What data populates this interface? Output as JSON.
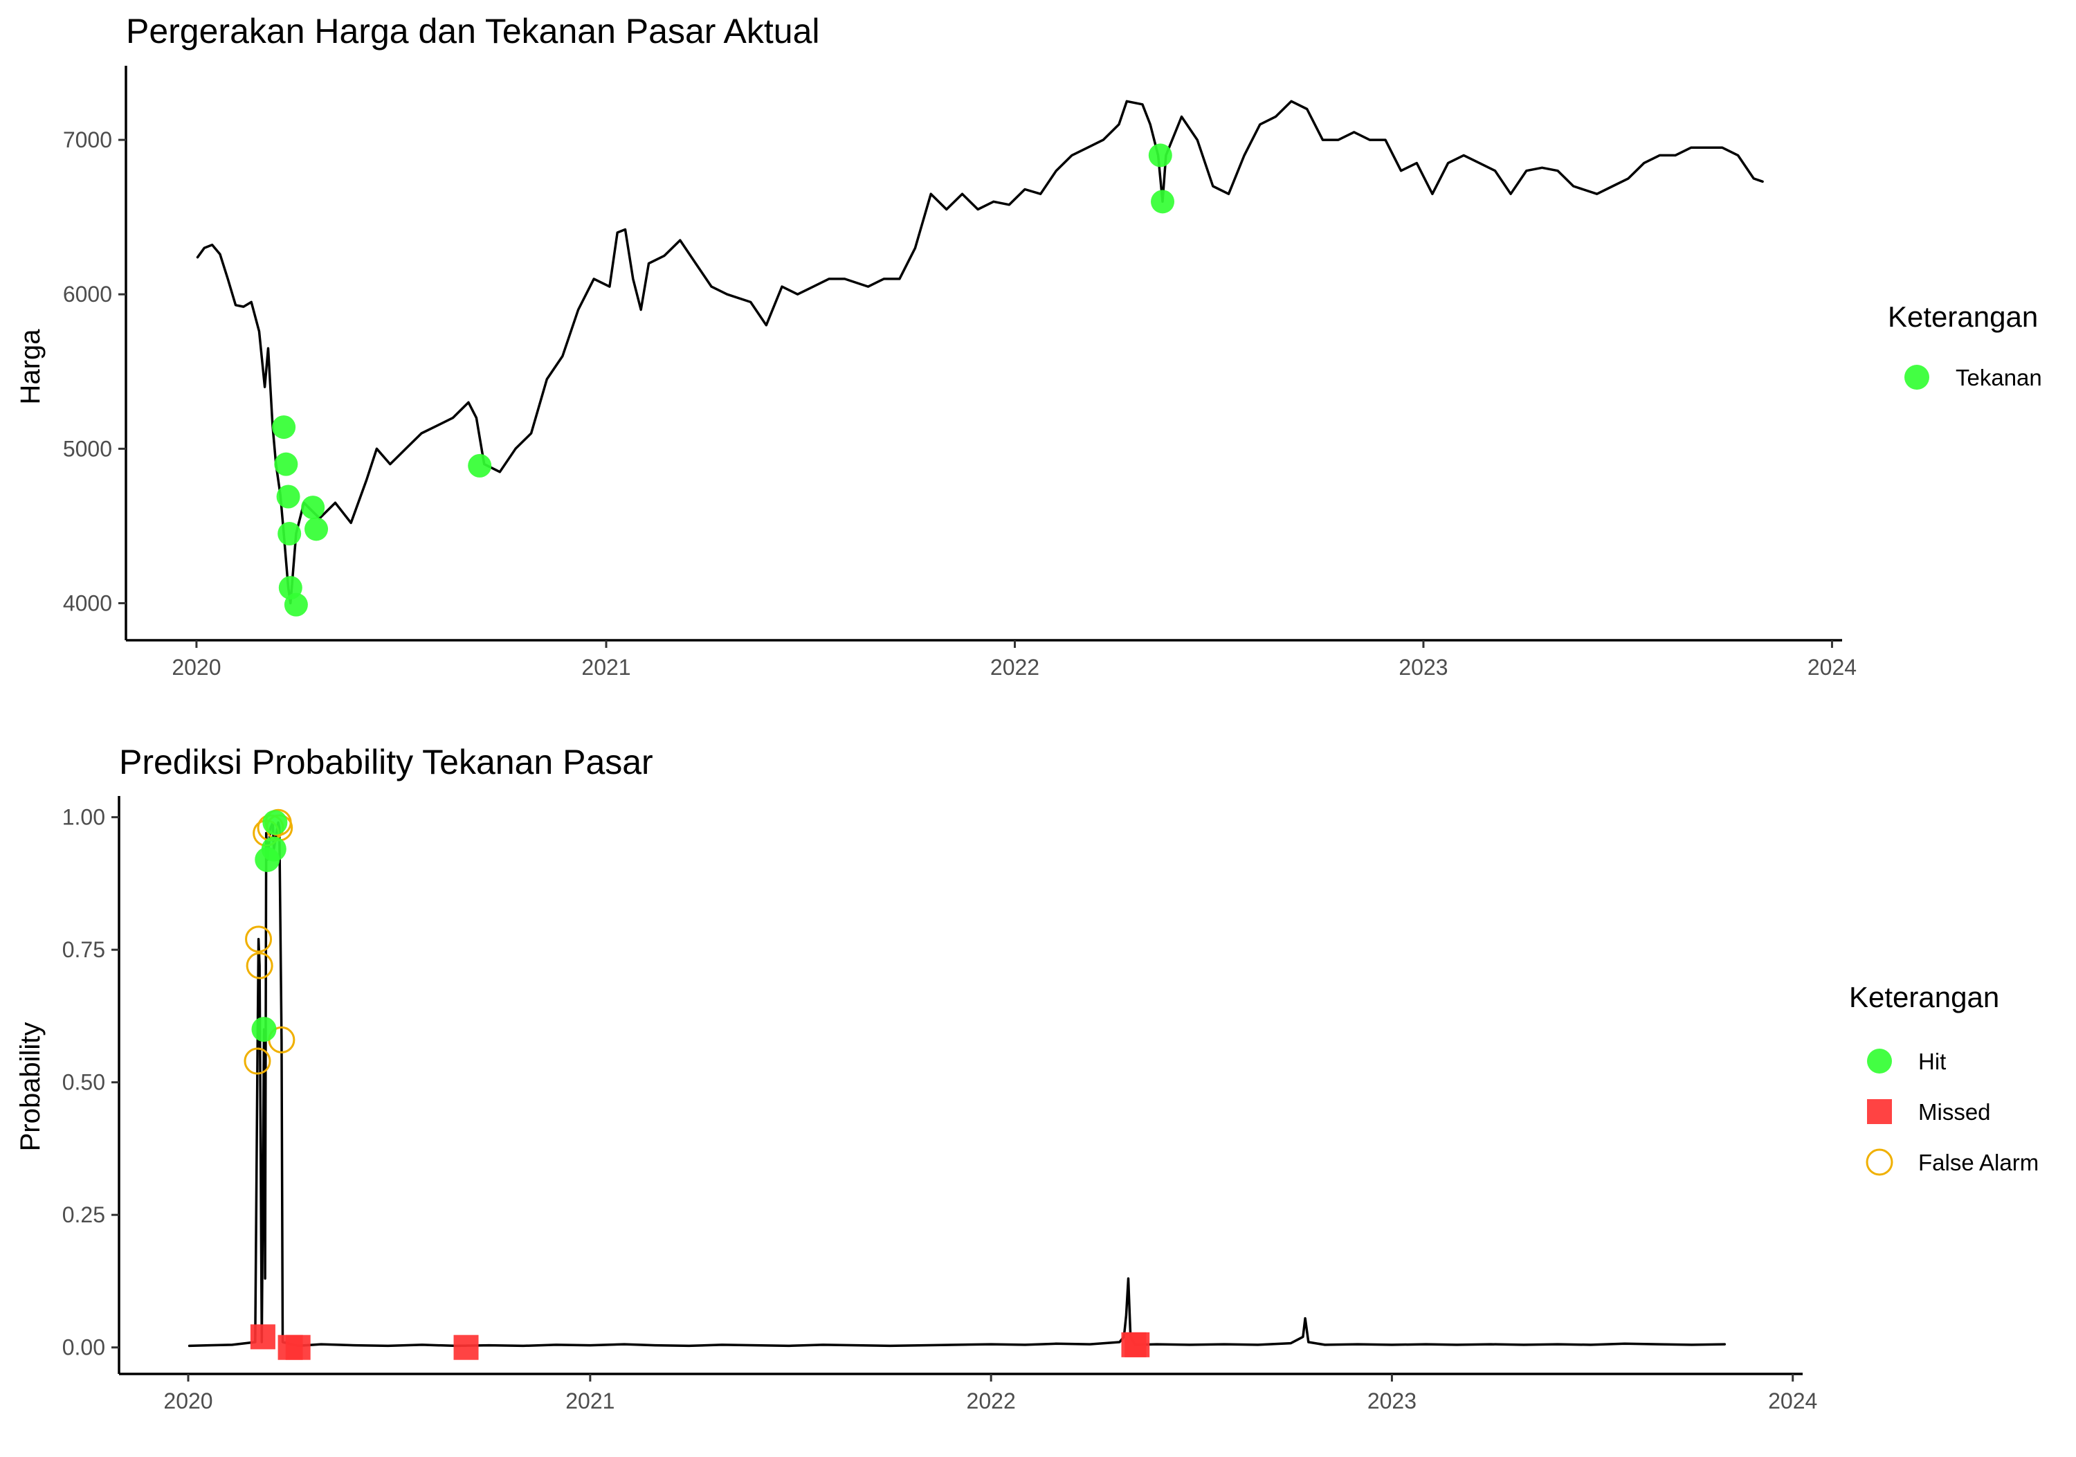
{
  "colors": {
    "line": "#000000",
    "hit": "#33ff33",
    "missed": "#ff3333",
    "false_alarm": "#f0b000",
    "tick_text": "#4d4d4d"
  },
  "chart_data": [
    {
      "type": "line",
      "title": "Pergerakan Harga dan Tekanan Pasar Aktual",
      "xlabel": "",
      "ylabel": "Harga",
      "x_axis_type": "date",
      "xlim": [
        "2019-10-30",
        "2024-01-10"
      ],
      "ylim": [
        3760,
        7480
      ],
      "x_ticks": [
        "2020-01-01",
        "2021-01-01",
        "2022-01-01",
        "2023-01-01",
        "2024-01-01"
      ],
      "x_tick_labels": [
        "2020",
        "2021",
        "2022",
        "2023",
        "2024"
      ],
      "y_ticks": [
        4000,
        5000,
        6000,
        7000
      ],
      "y_tick_labels": [
        "4000",
        "5000",
        "6000",
        "7000"
      ],
      "grid": false,
      "legend_title": "Keterangan",
      "legend_entries": [
        {
          "label": "Tekanan",
          "shape": "circle-filled",
          "color": "#33ff33"
        }
      ],
      "series": [
        {
          "values": [
            [
              "2020-01-02",
              6240
            ],
            [
              "2020-01-08",
              6300
            ],
            [
              "2020-01-15",
              6320
            ],
            [
              "2020-01-22",
              6260
            ],
            [
              "2020-01-29",
              6100
            ],
            [
              "2020-02-05",
              5930
            ],
            [
              "2020-02-12",
              5920
            ],
            [
              "2020-02-19",
              5950
            ],
            [
              "2020-02-26",
              5760
            ],
            [
              "2020-03-02",
              5400
            ],
            [
              "2020-03-05",
              5650
            ],
            [
              "2020-03-09",
              5150
            ],
            [
              "2020-03-12",
              4900
            ],
            [
              "2020-03-16",
              4700
            ],
            [
              "2020-03-19",
              4450
            ],
            [
              "2020-03-23",
              4100
            ],
            [
              "2020-03-25",
              4000
            ],
            [
              "2020-03-30",
              4450
            ],
            [
              "2020-04-06",
              4650
            ],
            [
              "2020-04-13",
              4600
            ],
            [
              "2020-04-20",
              4550
            ],
            [
              "2020-05-04",
              4650
            ],
            [
              "2020-05-18",
              4520
            ],
            [
              "2020-06-01",
              4800
            ],
            [
              "2020-06-10",
              5000
            ],
            [
              "2020-06-22",
              4900
            ],
            [
              "2020-07-06",
              5000
            ],
            [
              "2020-07-20",
              5100
            ],
            [
              "2020-08-03",
              5150
            ],
            [
              "2020-08-17",
              5200
            ],
            [
              "2020-08-31",
              5300
            ],
            [
              "2020-09-07",
              5200
            ],
            [
              "2020-09-14",
              4900
            ],
            [
              "2020-09-28",
              4850
            ],
            [
              "2020-10-12",
              5000
            ],
            [
              "2020-10-26",
              5100
            ],
            [
              "2020-11-09",
              5450
            ],
            [
              "2020-11-23",
              5600
            ],
            [
              "2020-12-07",
              5900
            ],
            [
              "2020-12-21",
              6100
            ],
            [
              "2021-01-04",
              6050
            ],
            [
              "2021-01-11",
              6400
            ],
            [
              "2021-01-18",
              6420
            ],
            [
              "2021-01-25",
              6100
            ],
            [
              "2021-02-01",
              5900
            ],
            [
              "2021-02-08",
              6200
            ],
            [
              "2021-02-22",
              6250
            ],
            [
              "2021-03-08",
              6350
            ],
            [
              "2021-03-22",
              6200
            ],
            [
              "2021-04-05",
              6050
            ],
            [
              "2021-04-19",
              6000
            ],
            [
              "2021-05-10",
              5950
            ],
            [
              "2021-05-24",
              5800
            ],
            [
              "2021-06-07",
              6050
            ],
            [
              "2021-06-21",
              6000
            ],
            [
              "2021-07-05",
              6050
            ],
            [
              "2021-07-19",
              6100
            ],
            [
              "2021-08-02",
              6100
            ],
            [
              "2021-08-23",
              6050
            ],
            [
              "2021-09-06",
              6100
            ],
            [
              "2021-09-20",
              6100
            ],
            [
              "2021-10-04",
              6300
            ],
            [
              "2021-10-18",
              6650
            ],
            [
              "2021-11-01",
              6550
            ],
            [
              "2021-11-15",
              6650
            ],
            [
              "2021-11-29",
              6550
            ],
            [
              "2021-12-13",
              6600
            ],
            [
              "2021-12-27",
              6580
            ],
            [
              "2022-01-10",
              6680
            ],
            [
              "2022-01-24",
              6650
            ],
            [
              "2022-02-07",
              6800
            ],
            [
              "2022-02-21",
              6900
            ],
            [
              "2022-03-07",
              6950
            ],
            [
              "2022-03-21",
              7000
            ],
            [
              "2022-04-04",
              7100
            ],
            [
              "2022-04-11",
              7250
            ],
            [
              "2022-04-25",
              7230
            ],
            [
              "2022-05-02",
              7100
            ],
            [
              "2022-05-09",
              6900
            ],
            [
              "2022-05-13",
              6600
            ],
            [
              "2022-05-16",
              6900
            ],
            [
              "2022-05-30",
              7150
            ],
            [
              "2022-06-13",
              7000
            ],
            [
              "2022-06-27",
              6700
            ],
            [
              "2022-07-11",
              6650
            ],
            [
              "2022-07-25",
              6900
            ],
            [
              "2022-08-08",
              7100
            ],
            [
              "2022-08-22",
              7150
            ],
            [
              "2022-09-05",
              7250
            ],
            [
              "2022-09-19",
              7200
            ],
            [
              "2022-10-03",
              7000
            ],
            [
              "2022-10-17",
              7000
            ],
            [
              "2022-10-31",
              7050
            ],
            [
              "2022-11-14",
              7000
            ],
            [
              "2022-11-28",
              7000
            ],
            [
              "2022-12-12",
              6800
            ],
            [
              "2022-12-26",
              6850
            ],
            [
              "2023-01-09",
              6650
            ],
            [
              "2023-01-23",
              6850
            ],
            [
              "2023-02-06",
              6900
            ],
            [
              "2023-02-20",
              6850
            ],
            [
              "2023-03-06",
              6800
            ],
            [
              "2023-03-20",
              6650
            ],
            [
              "2023-04-03",
              6800
            ],
            [
              "2023-04-17",
              6820
            ],
            [
              "2023-05-01",
              6800
            ],
            [
              "2023-05-15",
              6700
            ],
            [
              "2023-06-05",
              6650
            ],
            [
              "2023-06-19",
              6700
            ],
            [
              "2023-07-03",
              6750
            ],
            [
              "2023-07-17",
              6850
            ],
            [
              "2023-07-31",
              6900
            ],
            [
              "2023-08-14",
              6900
            ],
            [
              "2023-08-28",
              6950
            ],
            [
              "2023-09-11",
              6950
            ],
            [
              "2023-09-25",
              6950
            ],
            [
              "2023-10-09",
              6900
            ],
            [
              "2023-10-23",
              6750
            ],
            [
              "2023-10-31",
              6730
            ]
          ]
        }
      ],
      "points": [
        {
          "x": "2020-03-19",
          "y": 5140,
          "status": "Tekanan"
        },
        {
          "x": "2020-03-21",
          "y": 4900,
          "status": "Tekanan"
        },
        {
          "x": "2020-03-23",
          "y": 4690,
          "status": "Tekanan"
        },
        {
          "x": "2020-03-24",
          "y": 4450,
          "status": "Tekanan"
        },
        {
          "x": "2020-03-25",
          "y": 4100,
          "status": "Tekanan"
        },
        {
          "x": "2020-03-30",
          "y": 3990,
          "status": "Tekanan"
        },
        {
          "x": "2020-04-14",
          "y": 4620,
          "status": "Tekanan"
        },
        {
          "x": "2020-04-17",
          "y": 4480,
          "status": "Tekanan"
        },
        {
          "x": "2020-09-10",
          "y": 4890,
          "status": "Tekanan"
        },
        {
          "x": "2022-05-11",
          "y": 6900,
          "status": "Tekanan"
        },
        {
          "x": "2022-05-13",
          "y": 6600,
          "status": "Tekanan"
        }
      ]
    },
    {
      "type": "line",
      "title": "Prediksi Probability Tekanan Pasar",
      "xlabel": "",
      "ylabel": "Probability",
      "x_axis_type": "date",
      "xlim": [
        "2019-10-30",
        "2024-01-10"
      ],
      "ylim": [
        -0.05,
        1.04
      ],
      "x_ticks": [
        "2020-01-01",
        "2021-01-01",
        "2022-01-01",
        "2023-01-01",
        "2024-01-01"
      ],
      "x_tick_labels": [
        "2020",
        "2021",
        "2022",
        "2023",
        "2024"
      ],
      "y_ticks": [
        0,
        0.25,
        0.5,
        0.75,
        1.0
      ],
      "y_tick_labels": [
        "0.00",
        "0.25",
        "0.50",
        "0.75",
        "1.00"
      ],
      "grid": false,
      "legend_title": "Keterangan",
      "legend_entries": [
        {
          "label": "Hit",
          "shape": "circle-filled",
          "color": "#33ff33"
        },
        {
          "label": "Missed",
          "shape": "square-filled",
          "color": "#ff3333"
        },
        {
          "label": "False Alarm",
          "shape": "circle-open",
          "color": "#f0b000"
        }
      ],
      "series": [
        {
          "values": [
            [
              "2020-01-02",
              0.003
            ],
            [
              "2020-01-20",
              0.004
            ],
            [
              "2020-02-10",
              0.005
            ],
            [
              "2020-03-02",
              0.01
            ],
            [
              "2020-03-04",
              0.54
            ],
            [
              "2020-03-05",
              0.77
            ],
            [
              "2020-03-06",
              0.72
            ],
            [
              "2020-03-08",
              0.01
            ],
            [
              "2020-03-10",
              0.6
            ],
            [
              "2020-03-11",
              0.13
            ],
            [
              "2020-03-12",
              0.97
            ],
            [
              "2020-03-13",
              0.92
            ],
            [
              "2020-03-16",
              0.98
            ],
            [
              "2020-03-18",
              0.99
            ],
            [
              "2020-03-19",
              0.94
            ],
            [
              "2020-03-23",
              0.99
            ],
            [
              "2020-03-24",
              0.98
            ],
            [
              "2020-03-26",
              0.58
            ],
            [
              "2020-03-27",
              0.01
            ],
            [
              "2020-04-10",
              0.003
            ],
            [
              "2020-05-01",
              0.006
            ],
            [
              "2020-06-01",
              0.004
            ],
            [
              "2020-07-01",
              0.003
            ],
            [
              "2020-08-01",
              0.005
            ],
            [
              "2020-09-01",
              0.003
            ],
            [
              "2020-10-01",
              0.004
            ],
            [
              "2020-11-01",
              0.003
            ],
            [
              "2020-12-01",
              0.005
            ],
            [
              "2021-01-01",
              0.004
            ],
            [
              "2021-02-01",
              0.006
            ],
            [
              "2021-03-01",
              0.004
            ],
            [
              "2021-04-01",
              0.003
            ],
            [
              "2021-05-01",
              0.005
            ],
            [
              "2021-06-01",
              0.004
            ],
            [
              "2021-07-01",
              0.003
            ],
            [
              "2021-08-01",
              0.005
            ],
            [
              "2021-09-01",
              0.004
            ],
            [
              "2021-10-01",
              0.003
            ],
            [
              "2021-11-01",
              0.004
            ],
            [
              "2021-12-01",
              0.005
            ],
            [
              "2022-01-01",
              0.006
            ],
            [
              "2022-02-01",
              0.005
            ],
            [
              "2022-03-01",
              0.007
            ],
            [
              "2022-04-01",
              0.006
            ],
            [
              "2022-04-28",
              0.01
            ],
            [
              "2022-05-02",
              0.02
            ],
            [
              "2022-05-04",
              0.06
            ],
            [
              "2022-05-06",
              0.13
            ],
            [
              "2022-05-08",
              0.02
            ],
            [
              "2022-05-12",
              0.005
            ],
            [
              "2022-06-01",
              0.006
            ],
            [
              "2022-07-01",
              0.005
            ],
            [
              "2022-08-01",
              0.006
            ],
            [
              "2022-09-01",
              0.005
            ],
            [
              "2022-10-01",
              0.008
            ],
            [
              "2022-10-12",
              0.02
            ],
            [
              "2022-10-14",
              0.055
            ],
            [
              "2022-10-17",
              0.01
            ],
            [
              "2022-11-01",
              0.005
            ],
            [
              "2022-12-01",
              0.006
            ],
            [
              "2023-01-01",
              0.005
            ],
            [
              "2023-02-01",
              0.006
            ],
            [
              "2023-03-01",
              0.005
            ],
            [
              "2023-04-01",
              0.006
            ],
            [
              "2023-05-01",
              0.005
            ],
            [
              "2023-06-01",
              0.006
            ],
            [
              "2023-07-01",
              0.005
            ],
            [
              "2023-08-01",
              0.007
            ],
            [
              "2023-09-01",
              0.006
            ],
            [
              "2023-10-01",
              0.005
            ],
            [
              "2023-10-31",
              0.006
            ]
          ]
        }
      ],
      "points": [
        {
          "x": "2020-03-04",
          "y": 0.54,
          "status": "False Alarm"
        },
        {
          "x": "2020-03-05",
          "y": 0.77,
          "status": "False Alarm"
        },
        {
          "x": "2020-03-06",
          "y": 0.72,
          "status": "False Alarm"
        },
        {
          "x": "2020-03-12",
          "y": 0.97,
          "status": "False Alarm"
        },
        {
          "x": "2020-03-16",
          "y": 0.98,
          "status": "False Alarm"
        },
        {
          "x": "2020-03-23",
          "y": 0.99,
          "status": "False Alarm"
        },
        {
          "x": "2020-03-24",
          "y": 0.98,
          "status": "False Alarm"
        },
        {
          "x": "2020-03-26",
          "y": 0.58,
          "status": "False Alarm"
        },
        {
          "x": "2020-03-10",
          "y": 0.6,
          "status": "Hit"
        },
        {
          "x": "2020-03-13",
          "y": 0.92,
          "status": "Hit"
        },
        {
          "x": "2020-03-19",
          "y": 0.94,
          "status": "Hit"
        },
        {
          "x": "2020-03-20",
          "y": 0.99,
          "status": "Hit"
        },
        {
          "x": "2020-03-09",
          "y": 0.02,
          "status": "Missed"
        },
        {
          "x": "2020-04-03",
          "y": 0.0,
          "status": "Missed"
        },
        {
          "x": "2020-04-10",
          "y": 0.0,
          "status": "Missed"
        },
        {
          "x": "2020-09-10",
          "y": 0.0,
          "status": "Missed"
        },
        {
          "x": "2022-05-11",
          "y": 0.005,
          "status": "Missed"
        },
        {
          "x": "2022-05-14",
          "y": 0.005,
          "status": "Missed"
        }
      ]
    }
  ]
}
